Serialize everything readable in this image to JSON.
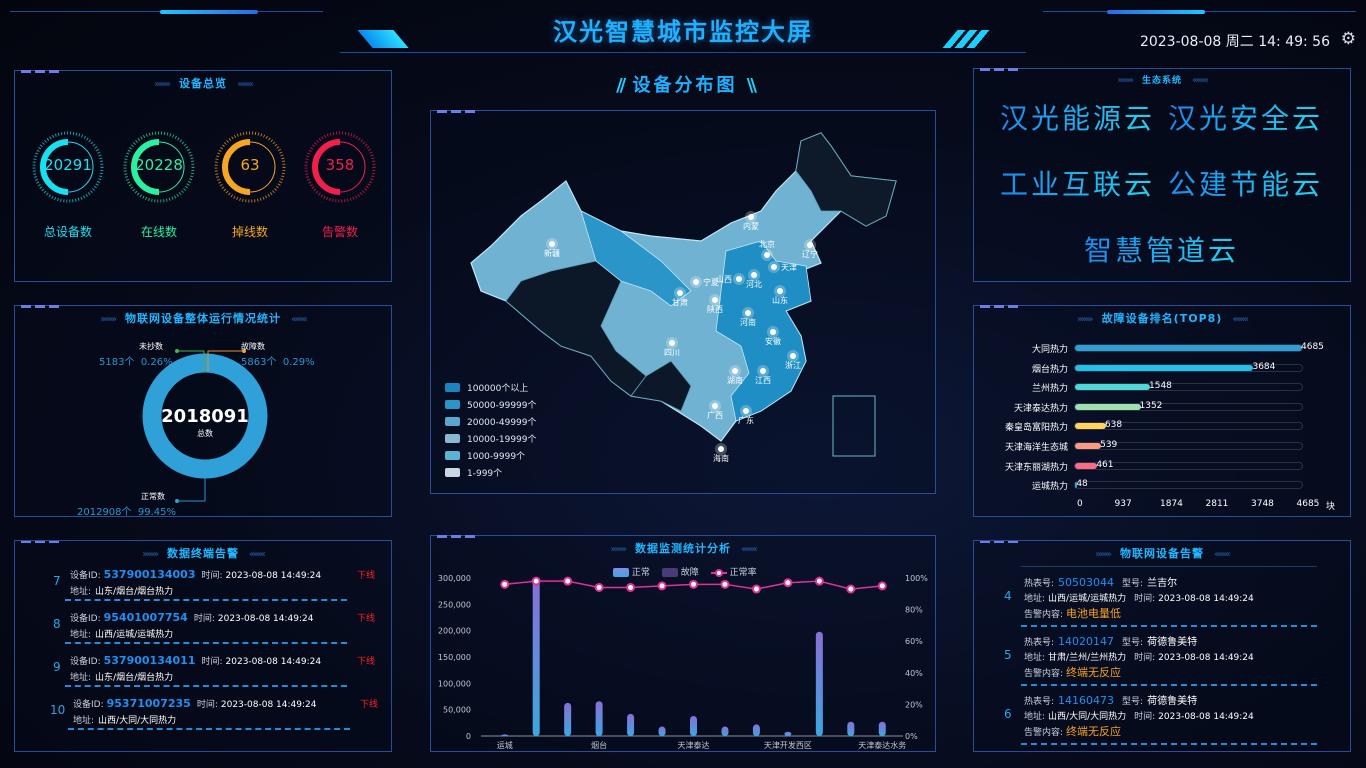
{
  "header": {
    "title": "汉光智慧城市监控大屏",
    "datetime": "2023-08-08 周二 14: 49: 56",
    "settings_icon": "gear-icon"
  },
  "overview": {
    "title": "设备总览",
    "gauges": [
      {
        "value": "20291",
        "label": "总设备数",
        "color": "#19e0f0"
      },
      {
        "value": "20228",
        "label": "在线数",
        "color": "#2af0a0"
      },
      {
        "value": "63",
        "label": "掉线数",
        "color": "#f5a623"
      },
      {
        "value": "358",
        "label": "告警数",
        "color": "#f0204a"
      }
    ]
  },
  "iot_stats": {
    "title": "物联网设备整体运行情况统计",
    "total": "2018091",
    "total_label": "总数",
    "unread": {
      "label": "未抄数",
      "value": "5183个",
      "percent": "0.26%"
    },
    "fault": {
      "label": "故障数",
      "value": "5863个",
      "percent": "0.29%"
    },
    "normal": {
      "label": "正常数",
      "value": "2012908个",
      "percent": "99.45%"
    },
    "ring_color": "#2fa0d8"
  },
  "terminal_alarms": {
    "title": "数据终端告警",
    "id_label": "设备ID:",
    "time_label": "时间:",
    "addr_label": "地址:",
    "items": [
      {
        "index": "7",
        "id": "537900134003",
        "time": "2023-08-08 14:49:24",
        "status": "下线",
        "address": "山东/烟台/烟台热力"
      },
      {
        "index": "8",
        "id": "95401007754",
        "time": "2023-08-08 14:49:24",
        "status": "下线",
        "address": "山西/运城/运城热力"
      },
      {
        "index": "9",
        "id": "537900134011",
        "time": "2023-08-08 14:49:24",
        "status": "下线",
        "address": "山东/烟台/烟台热力"
      },
      {
        "index": "10",
        "id": "95371007235",
        "time": "2023-08-08 14:49:24",
        "status": "下线",
        "address": "山西/大同/大同热力"
      }
    ]
  },
  "map": {
    "title": "设备分布图",
    "provinces": [
      "新疆",
      "内蒙",
      "辽宁",
      "北京",
      "天津",
      "河北",
      "山西",
      "山东",
      "宁夏",
      "甘肃",
      "陕西",
      "河南",
      "安徽",
      "四川",
      "浙江",
      "湖南",
      "江西",
      "广西",
      "广东",
      "海南"
    ],
    "legend": [
      {
        "label": "100000个以上",
        "color": "#1a86c0"
      },
      {
        "label": "50000-99999个",
        "color": "#2a95c8"
      },
      {
        "label": "20000-49999个",
        "color": "#5aa6cf"
      },
      {
        "label": "10000-19999个",
        "color": "#8ab8d2"
      },
      {
        "label": "1000-9999个",
        "color": "#5ab4d4"
      },
      {
        "label": "1-999个",
        "color": "#c8d8e0"
      }
    ]
  },
  "monitor_chart": {
    "title": "数据监测统计分析",
    "legend": {
      "normal": "正常",
      "fault": "故障",
      "rate": "正常率"
    }
  },
  "chart_data": {
    "type": "bar",
    "categories": [
      "运城",
      "",
      "",
      "烟台",
      "",
      "",
      "天津泰达",
      "",
      "",
      "天津开发西区",
      "",
      "",
      "天津泰达水务"
    ],
    "series": [
      {
        "name": "正常",
        "type": "bar",
        "values": [
          3000,
          300000,
          63000,
          66000,
          42000,
          18000,
          38000,
          18000,
          22000,
          8000,
          198000,
          27000,
          27000
        ]
      },
      {
        "name": "正常率",
        "type": "line",
        "axis": "right",
        "values": [
          96,
          98,
          98,
          94,
          94,
          95,
          96,
          96,
          93,
          97,
          98,
          93,
          95
        ]
      }
    ],
    "yticks_left": [
      "0",
      "50,000",
      "100,000",
      "150,000",
      "200,000",
      "250,000",
      "300,000"
    ],
    "yticks_right": [
      "0%",
      "20%",
      "40%",
      "60%",
      "80%",
      "100%"
    ],
    "ylim_left": [
      0,
      300000
    ],
    "ylim_right": [
      0,
      100
    ],
    "colors": {
      "bar_top": "#8a6fd6",
      "bar_bottom": "#3aa8e0",
      "line": "#e0309a"
    }
  },
  "ecosystem": {
    "title": "生态系统",
    "rows": [
      [
        "汉光能源云",
        "汉光安全云"
      ],
      [
        "工业互联云",
        "公建节能云"
      ],
      [
        "智慧管道云"
      ]
    ]
  },
  "fault_ranking": {
    "title": "故障设备排名(TOP8)",
    "max": 4685,
    "items": [
      {
        "name": "大同热力",
        "value": 4685,
        "label": "4685",
        "color": "#2f9fd8"
      },
      {
        "name": "烟台热力",
        "value": 3684,
        "label": "3684",
        "color": "#22c0ea"
      },
      {
        "name": "兰州热力",
        "value": 1548,
        "label": "1548",
        "color": "#4fd6d6"
      },
      {
        "name": "天津泰达热力",
        "value": 1352,
        "label": "1352",
        "color": "#9ee0b0"
      },
      {
        "name": "秦皇岛富阳热力",
        "value": 638,
        "label": "638",
        "color": "#ffd55a"
      },
      {
        "name": "天津海洋生态城",
        "value": 539,
        "label": "539",
        "color": "#ff9a80"
      },
      {
        "name": "天津东丽湖热力",
        "value": 461,
        "label": "461",
        "color": "#ff6a8a"
      },
      {
        "name": "运城热力",
        "value": 48,
        "label": "48",
        "color": "#2f9fd8"
      }
    ],
    "axis": [
      "0",
      "937",
      "1874",
      "2811",
      "3748",
      "4685"
    ],
    "unit": "块"
  },
  "iot_alarms": {
    "title": "物联网设备告警",
    "meter_label": "热表号:",
    "model_label": "型号:",
    "addr_label": "地址:",
    "time_label": "时间:",
    "content_label": "告警内容:",
    "items": [
      {
        "index": "4",
        "meter": "50503044",
        "model": "兰吉尔",
        "address": "山西/运城/运城热力",
        "time": "2023-08-08 14:49:24",
        "content": "电池电量低"
      },
      {
        "index": "5",
        "meter": "14020147",
        "model": "荷德鲁美特",
        "address": "甘肃/兰州/兰州热力",
        "time": "2023-08-08 14:49:24",
        "content": "终端无反应"
      },
      {
        "index": "6",
        "meter": "14160473",
        "model": "荷德鲁美特",
        "address": "山西/大同/大同热力",
        "time": "2023-08-08 14:49:24",
        "content": "终端无反应"
      }
    ]
  }
}
